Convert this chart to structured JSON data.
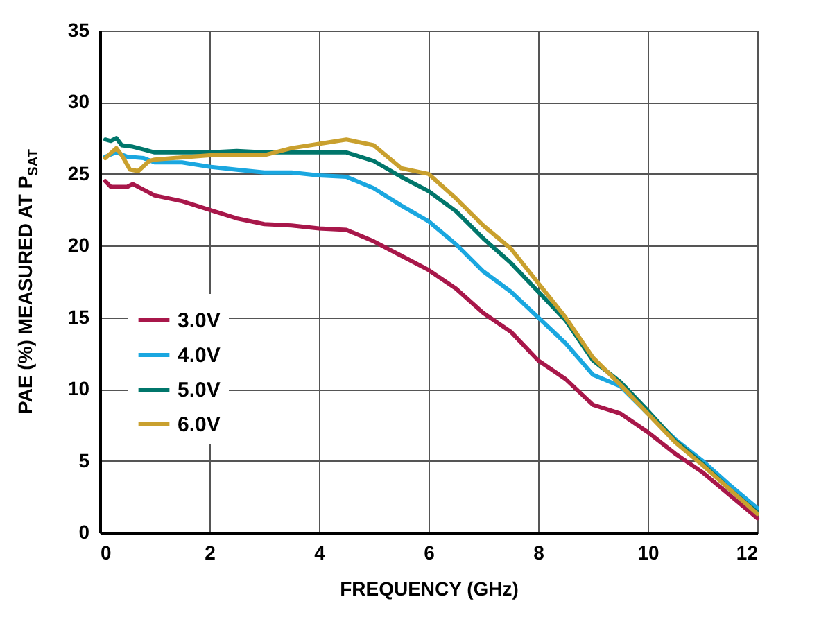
{
  "chart_data": {
    "type": "line",
    "xlabel": "FREQUENCY (GHz)",
    "ylabel": "PAE (%) MEASURED AT P$_{SAT}$",
    "xlim": [
      0,
      12
    ],
    "xticks": [
      0,
      2,
      4,
      6,
      8,
      10,
      12
    ],
    "ylim": [
      0,
      35
    ],
    "yticks": [
      0,
      5,
      10,
      15,
      20,
      25,
      30,
      35
    ],
    "grid": true,
    "legend": "left",
    "line_style": "solid",
    "series": [
      {
        "name": "3.0V",
        "color": "#a8174a",
        "x": [
          0.1,
          0.2,
          0.5,
          0.6,
          0.8,
          1,
          1.5,
          2,
          2.5,
          3,
          3.5,
          4,
          4.5,
          5,
          5.5,
          6,
          6.5,
          7,
          7.5,
          8,
          8.5,
          9,
          9.5,
          10,
          10.5,
          11,
          11.5,
          12
        ],
        "values": [
          24.5,
          24.1,
          24.1,
          24.3,
          23.9,
          23.5,
          23.1,
          22.5,
          21.9,
          21.5,
          21.4,
          21.2,
          21.1,
          20.3,
          19.3,
          18.3,
          17,
          15.3,
          14,
          12,
          10.7,
          8.9,
          8.3,
          7,
          5.5,
          4.2,
          2.6,
          1
        ]
      },
      {
        "name": "4.0V",
        "color": "#1aa7e0",
        "x": [
          0.1,
          0.3,
          0.5,
          0.8,
          1,
          1.5,
          2,
          2.5,
          3,
          3.5,
          4,
          4.5,
          5,
          5.5,
          6,
          6.5,
          7,
          7.5,
          8,
          8.5,
          9,
          9.5,
          10,
          10.5,
          11,
          11.5,
          12
        ],
        "values": [
          26.2,
          26.5,
          26.2,
          26.1,
          25.8,
          25.8,
          25.5,
          25.3,
          25.1,
          25.1,
          24.9,
          24.8,
          24,
          22.8,
          21.7,
          20.1,
          18.2,
          16.8,
          15,
          13.2,
          11,
          10.2,
          8.3,
          6.5,
          5,
          3.3,
          1.7
        ]
      },
      {
        "name": "5.0V",
        "color": "#00766b",
        "x": [
          0.1,
          0.2,
          0.3,
          0.4,
          0.6,
          0.8,
          1,
          2,
          2.5,
          3,
          3.5,
          4,
          4.5,
          5,
          5.5,
          6,
          6.5,
          7,
          7.5,
          8,
          8.5,
          9,
          9.5,
          10,
          10.5,
          11,
          11.5,
          12
        ],
        "values": [
          27.4,
          27.3,
          27.5,
          27,
          26.9,
          26.7,
          26.5,
          26.5,
          26.6,
          26.5,
          26.5,
          26.5,
          26.5,
          25.9,
          24.8,
          23.8,
          22.4,
          20.5,
          18.8,
          16.8,
          14.8,
          12,
          10.5,
          8.5,
          6.4,
          4.8,
          3,
          1.4
        ]
      },
      {
        "name": "6.0V",
        "color": "#c9a02e",
        "x": [
          0.1,
          0.3,
          0.4,
          0.55,
          0.7,
          0.9,
          1,
          2,
          3,
          3.5,
          4,
          4.5,
          5,
          5.5,
          6,
          6.5,
          7,
          7.5,
          8,
          8.5,
          9,
          9.5,
          10,
          10.5,
          11,
          11.5,
          12
        ],
        "values": [
          26.1,
          26.8,
          26.3,
          25.3,
          25.2,
          25.9,
          26,
          26.3,
          26.3,
          26.8,
          27.1,
          27.4,
          27,
          25.4,
          25,
          23.3,
          21.4,
          19.8,
          17.4,
          15,
          12.2,
          10.3,
          8.3,
          6.3,
          4.7,
          3,
          1.3
        ]
      }
    ]
  }
}
